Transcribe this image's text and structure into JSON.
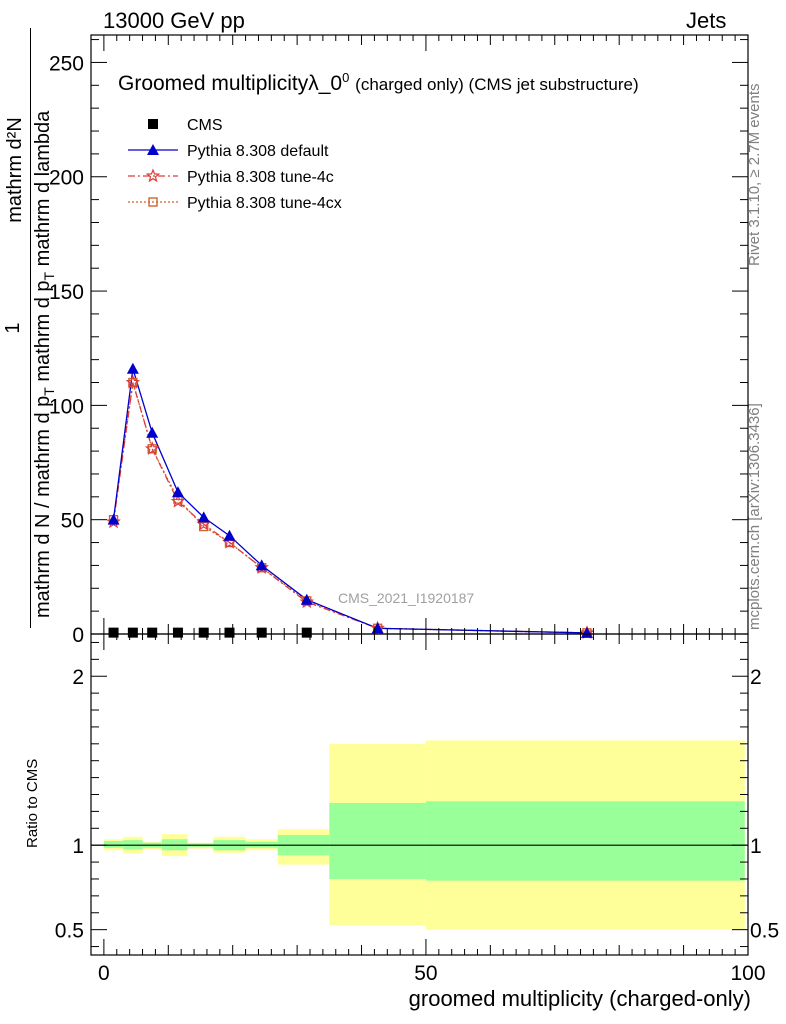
{
  "header": {
    "left": "13000 GeV pp",
    "right": "Jets"
  },
  "side": {
    "rivet": "Rivet 3.1.10, ≥ 2.7M events",
    "mcplots": "mcplots.cern.ch [arXiv:1306.3436]"
  },
  "colors": {
    "cms": "#000000",
    "default": "#0000cc",
    "tune4c": "#e03a3a",
    "tune4cx": "#cc6633",
    "band_outer": "#ffff99",
    "band_inner": "#99ff99"
  },
  "chart_data": [
    {
      "type": "line",
      "title": "Groomed multiplicityλ_0",
      "title_sup": "0",
      "title_suffix": "(charged only) (CMS jet substructure)",
      "ylabel_top": "1",
      "ylabel_num": "mathrm d²N",
      "ylabel_den": "mathrm d N / mathrm d p",
      "ylabel_den_sub": "T",
      "ylabel_den2": " mathrm d p",
      "ylabel_den2_sub": "T",
      "ylabel_den3": " mathrm d lambda",
      "xlim": [
        -2,
        100
      ],
      "ylim": [
        0,
        262
      ],
      "yticks": [
        0,
        50,
        100,
        150,
        200,
        250
      ],
      "watermark": "CMS_2021_I1920187",
      "legend": [
        "CMS",
        "Pythia 8.308 default",
        "Pythia 8.308 tune-4c",
        "Pythia 8.308 tune-4cx"
      ],
      "series": [
        {
          "name": "CMS",
          "marker": "square",
          "x": [
            1.5,
            4.5,
            7.5,
            11.5,
            15.5,
            19.5,
            24.5,
            31.5
          ],
          "y": [
            0.6,
            0.6,
            0.6,
            0.6,
            0.6,
            0.6,
            0.6,
            0.6
          ]
        },
        {
          "name": "Pythia 8.308 default",
          "marker": "triangle",
          "x": [
            1.5,
            4.5,
            7.5,
            11.5,
            15.5,
            19.5,
            24.5,
            31.5,
            42.5,
            75
          ],
          "y": [
            50,
            116,
            88,
            62,
            51,
            43,
            30,
            15,
            2.5,
            0.5
          ]
        },
        {
          "name": "Pythia 8.308 tune-4c",
          "marker": "star",
          "x": [
            1.5,
            4.5,
            7.5,
            11.5,
            15.5,
            19.5,
            24.5,
            31.5,
            42.5,
            75
          ],
          "y": [
            49,
            110,
            81,
            58,
            48,
            40,
            29,
            14,
            2.5,
            0.5
          ]
        },
        {
          "name": "Pythia 8.308 tune-4cx",
          "marker": "open-square",
          "x": [
            1.5,
            4.5,
            7.5,
            11.5,
            15.5,
            19.5,
            24.5,
            31.5,
            42.5,
            75
          ],
          "y": [
            50,
            110,
            81,
            59,
            47,
            40,
            29,
            14.5,
            2.5,
            0.5
          ]
        }
      ]
    },
    {
      "type": "area",
      "ylabel": "Ratio to CMS",
      "xlabel": "groomed multiplicity (charged-only)",
      "xlim": [
        -2,
        100
      ],
      "ylim": [
        0.35,
        2.25
      ],
      "yticks": [
        0.5,
        1,
        2
      ],
      "xticks": [
        0,
        50,
        100
      ],
      "bins": [
        {
          "lo": 0,
          "hi": 3,
          "inner": [
            0.985,
            1.025
          ],
          "outer": [
            0.97,
            1.035
          ]
        },
        {
          "lo": 3,
          "hi": 6,
          "inner": [
            0.975,
            1.03
          ],
          "outer": [
            0.95,
            1.05
          ]
        },
        {
          "lo": 6,
          "hi": 9,
          "inner": [
            0.985,
            1.015
          ],
          "outer": [
            0.975,
            1.02
          ]
        },
        {
          "lo": 9,
          "hi": 13,
          "inner": [
            0.97,
            1.035
          ],
          "outer": [
            0.935,
            1.065
          ]
        },
        {
          "lo": 13,
          "hi": 17,
          "inner": [
            0.99,
            1.01
          ],
          "outer": [
            0.98,
            1.015
          ]
        },
        {
          "lo": 17,
          "hi": 22,
          "inner": [
            0.97,
            1.03
          ],
          "outer": [
            0.955,
            1.05
          ]
        },
        {
          "lo": 22,
          "hi": 27,
          "inner": [
            0.985,
            1.02
          ],
          "outer": [
            0.97,
            1.035
          ]
        },
        {
          "lo": 27,
          "hi": 35,
          "inner": [
            0.94,
            1.06
          ],
          "outer": [
            0.885,
            1.095
          ]
        },
        {
          "lo": 35,
          "hi": 50,
          "inner": [
            0.8,
            1.25
          ],
          "outer": [
            0.525,
            1.6
          ]
        },
        {
          "lo": 50,
          "hi": 99.5,
          "inner": [
            0.79,
            1.26
          ],
          "outer": [
            0.5,
            1.62
          ]
        }
      ]
    }
  ]
}
